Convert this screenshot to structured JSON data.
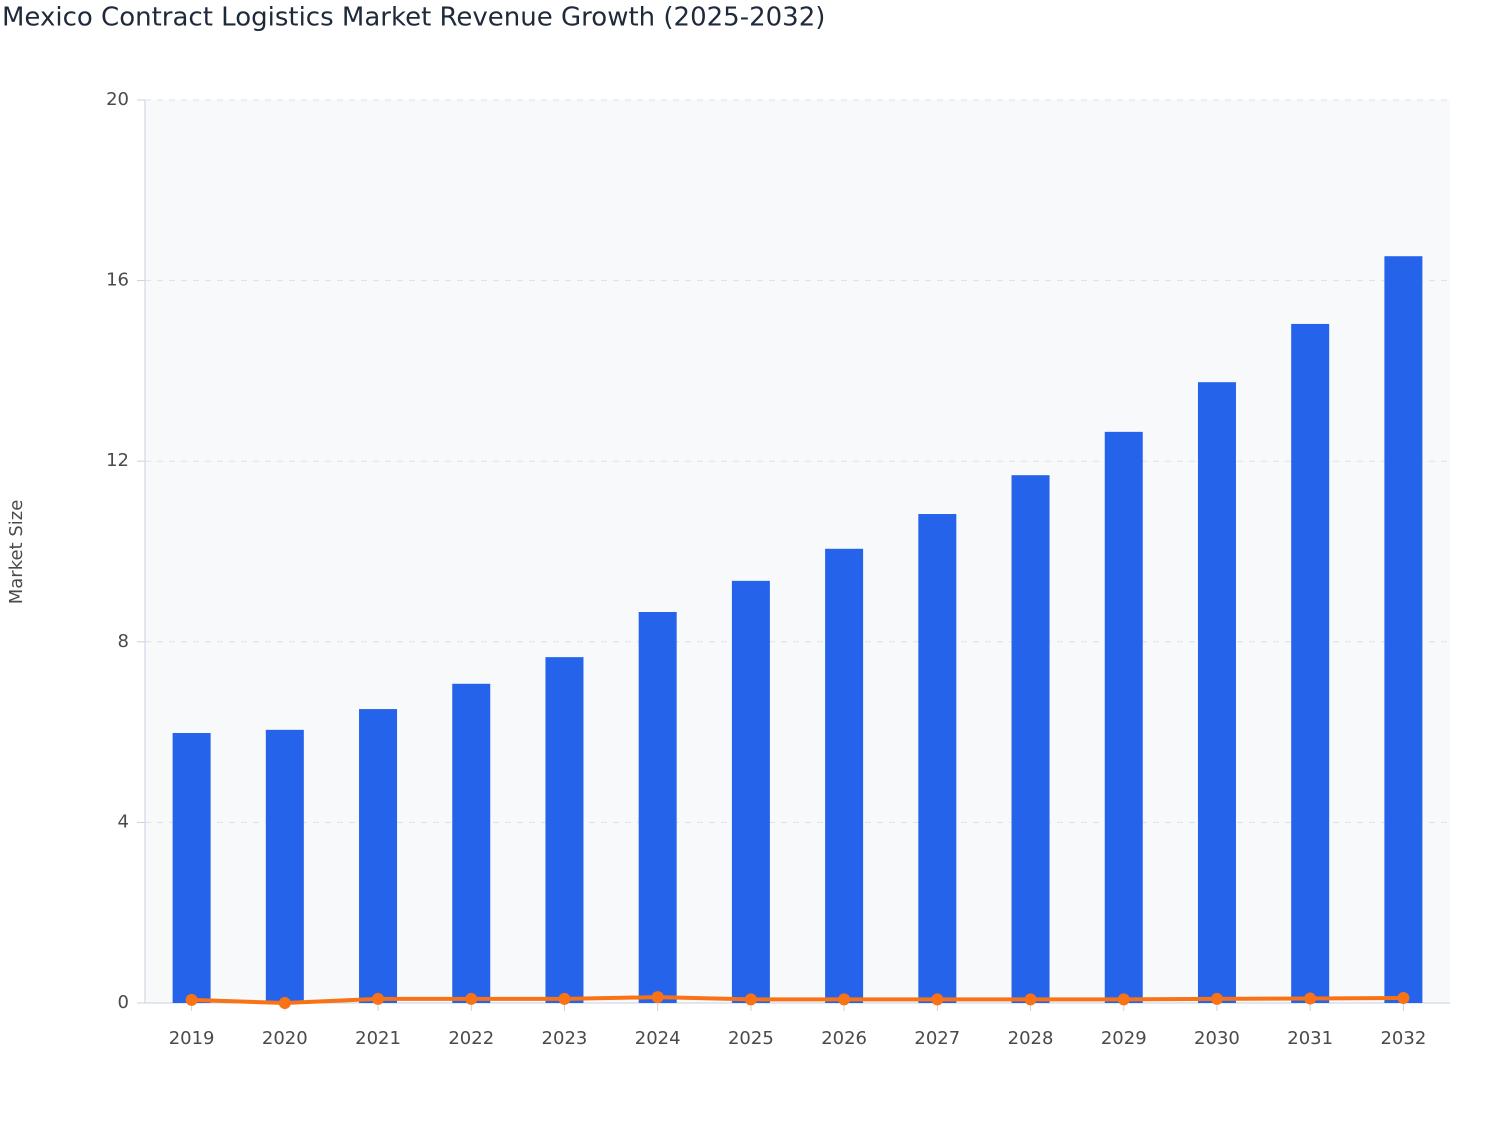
{
  "chart_data": {
    "type": "bar",
    "title": "Mexico Contract Logistics Market Revenue Growth (2025-2032)",
    "ylabel": "Market Size",
    "categories": [
      "2019",
      "2020",
      "2021",
      "2022",
      "2023",
      "2024",
      "2025",
      "2026",
      "2027",
      "2028",
      "2029",
      "2030",
      "2031",
      "2032"
    ],
    "series": [
      {
        "type": "bar",
        "color": "#2563eb",
        "values": [
          5.98,
          6.05,
          6.51,
          7.07,
          7.66,
          8.66,
          9.35,
          10.06,
          10.83,
          11.69,
          12.65,
          13.75,
          15.04,
          16.54
        ]
      },
      {
        "type": "line",
        "color": "#f97316",
        "values": [
          0.07,
          0.0,
          0.09,
          0.09,
          0.09,
          0.13,
          0.08,
          0.08,
          0.08,
          0.08,
          0.08,
          0.09,
          0.1,
          0.11
        ]
      }
    ],
    "ylim": [
      0,
      20
    ],
    "yticks": [
      0,
      4,
      8,
      12,
      16,
      20
    ],
    "grid": true
  }
}
